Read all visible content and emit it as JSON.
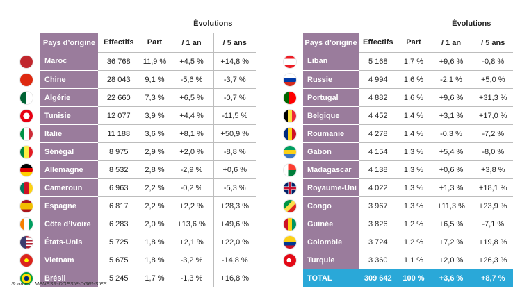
{
  "headers": {
    "country": "Pays d’origine",
    "effectifs": "Effectifs",
    "part": "Part",
    "evolutions": "Évolutions",
    "one_year": "/ 1 an",
    "five_years": "/ 5 ans"
  },
  "left_rows": [
    {
      "flag": "flag-morocco-icon",
      "country": "Maroc",
      "effectifs": "36 768",
      "part": "11,9 %",
      "y1": "+4,5 %",
      "y5": "+14,8 %"
    },
    {
      "flag": "flag-china-icon",
      "country": "Chine",
      "effectifs": "28 043",
      "part": "9,1 %",
      "y1": "-5,6 %",
      "y5": "-3,7 %"
    },
    {
      "flag": "flag-algeria-icon",
      "country": "Algérie",
      "effectifs": "22 660",
      "part": "7,3 %",
      "y1": "+6,5 %",
      "y5": "-0,7 %"
    },
    {
      "flag": "flag-tunisia-icon",
      "country": "Tunisie",
      "effectifs": "12 077",
      "part": "3,9 %",
      "y1": "+4,4 %",
      "y5": "-11,5 %"
    },
    {
      "flag": "flag-italy-icon",
      "country": "Italie",
      "effectifs": "11 188",
      "part": "3,6 %",
      "y1": "+8,1 %",
      "y5": "+50,9 %"
    },
    {
      "flag": "flag-senegal-icon",
      "country": "Sénégal",
      "effectifs": "8 975",
      "part": "2,9 %",
      "y1": "+2,0 %",
      "y5": "-8,8 %"
    },
    {
      "flag": "flag-germany-icon",
      "country": "Allemagne",
      "effectifs": "8 532",
      "part": "2,8 %",
      "y1": "-2,9 %",
      "y5": "+0,6 %"
    },
    {
      "flag": "flag-cameroon-icon",
      "country": "Cameroun",
      "effectifs": "6 963",
      "part": "2,2 %",
      "y1": "-0,2 %",
      "y5": "-5,3 %"
    },
    {
      "flag": "flag-spain-icon",
      "country": "Espagne",
      "effectifs": "6 817",
      "part": "2,2 %",
      "y1": "+2,2 %",
      "y5": "+28,3 %"
    },
    {
      "flag": "flag-ivory-coast-icon",
      "country": "Côte d’Ivoire",
      "effectifs": "6 283",
      "part": "2,0 %",
      "y1": "+13,6 %",
      "y5": "+49,6 %"
    },
    {
      "flag": "flag-usa-icon",
      "country": "États-Unis",
      "effectifs": "5 725",
      "part": "1,8 %",
      "y1": "+2,1 %",
      "y5": "+22,0 %"
    },
    {
      "flag": "flag-vietnam-icon",
      "country": "Vietnam",
      "effectifs": "5 675",
      "part": "1,8 %",
      "y1": "-3,2 %",
      "y5": "-14,8 %"
    },
    {
      "flag": "flag-brazil-icon",
      "country": "Brésil",
      "effectifs": "5 245",
      "part": "1,7 %",
      "y1": "-1,3 %",
      "y5": "+16,8 %"
    }
  ],
  "right_rows": [
    {
      "flag": "flag-lebanon-icon",
      "country": "Liban",
      "effectifs": "5 168",
      "part": "1,7 %",
      "y1": "+9,6 %",
      "y5": "-0,8 %"
    },
    {
      "flag": "flag-russia-icon",
      "country": "Russie",
      "effectifs": "4 994",
      "part": "1,6 %",
      "y1": "-2,1 %",
      "y5": "+5,0 %"
    },
    {
      "flag": "flag-portugal-icon",
      "country": "Portugal",
      "effectifs": "4 882",
      "part": "1,6 %",
      "y1": "+9,6 %",
      "y5": "+31,3 %"
    },
    {
      "flag": "flag-belgium-icon",
      "country": "Belgique",
      "effectifs": "4 452",
      "part": "1,4 %",
      "y1": "+3,1 %",
      "y5": "+17,0 %"
    },
    {
      "flag": "flag-romania-icon",
      "country": "Roumanie",
      "effectifs": "4 278",
      "part": "1,4 %",
      "y1": "-0,3 %",
      "y5": "-7,2 %"
    },
    {
      "flag": "flag-gabon-icon",
      "country": "Gabon",
      "effectifs": "4 154",
      "part": "1,3 %",
      "y1": "+5,4 %",
      "y5": "-8,0 %"
    },
    {
      "flag": "flag-madagascar-icon",
      "country": "Madagascar",
      "effectifs": "4 138",
      "part": "1,3 %",
      "y1": "+0,6 %",
      "y5": "+3,8 %"
    },
    {
      "flag": "flag-uk-icon",
      "country": "Royaume-Uni",
      "effectifs": "4 022",
      "part": "1,3 %",
      "y1": "+1,3 %",
      "y5": "+18,1 %"
    },
    {
      "flag": "flag-congo-icon",
      "country": "Congo",
      "effectifs": "3 967",
      "part": "1,3 %",
      "y1": "+11,3 %",
      "y5": "+23,9 %"
    },
    {
      "flag": "flag-guinea-icon",
      "country": "Guinée",
      "effectifs": "3 826",
      "part": "1,2 %",
      "y1": "+6,5 %",
      "y5": "-7,1 %"
    },
    {
      "flag": "flag-colombia-icon",
      "country": "Colombie",
      "effectifs": "3 724",
      "part": "1,2 %",
      "y1": "+7,2 %",
      "y5": "+19,8 %"
    },
    {
      "flag": "flag-turkey-icon",
      "country": "Turquie",
      "effectifs": "3 360",
      "part": "1,1 %",
      "y1": "+2,0 %",
      "y5": "+26,3 %"
    }
  ],
  "total": {
    "label": "TOTAL",
    "effectifs": "309 642",
    "part": "100 %",
    "y1": "+3,6 %",
    "y5": "+8,7 %"
  },
  "source": "Sources : MENESR-DGESIP-DGRI-SIES",
  "colors": {
    "header_purple": "#9a7c9c",
    "total_blue": "#2aa8d8"
  }
}
